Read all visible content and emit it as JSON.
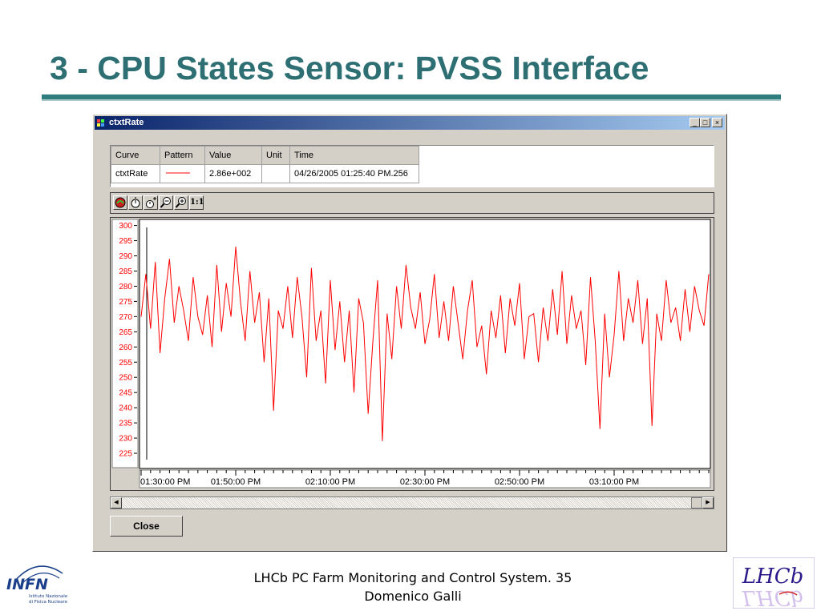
{
  "slide": {
    "title": "3 - CPU States Sensor: PVSS Interface",
    "footer_line1": "LHCb PC Farm Monitoring and Control System. 35",
    "footer_line2": "Domenico Galli"
  },
  "logos": {
    "infn_main": "INFN",
    "infn_sub1": "Istituto Nazionale",
    "infn_sub2": "di Fisica Nucleare",
    "lhcb": "LHCb"
  },
  "window": {
    "title": "ctxtRate",
    "minimize_glyph": "_",
    "maximize_glyph": "□",
    "close_glyph": "×",
    "scroll_left_glyph": "◀",
    "scroll_right_glyph": "▶",
    "close_button": "Close"
  },
  "curve_table": {
    "headers": [
      "Curve",
      "Pattern",
      "Value",
      "Unit",
      "Time"
    ],
    "row": {
      "curve": "ctxtRate",
      "value": "2.86e+002",
      "unit": "",
      "time": "04/26/2005 01:25:40 PM.256"
    }
  },
  "toolbar": {
    "zoom_reset_label": "1:1",
    "icons": [
      "curve-settings-icon",
      "stopwatch-icon",
      "stopwatch-plus-icon",
      "zoom-out-icon",
      "zoom-in-icon",
      "zoom-reset-icon"
    ]
  },
  "colors": {
    "curve": "#ff0000",
    "title": "#2e6f73",
    "y_tick_labels": "#ff0000"
  },
  "chart_data": {
    "type": "line",
    "series": [
      {
        "name": "ctxtRate",
        "x_minutes": [
          0,
          1,
          2,
          3,
          4,
          5,
          6,
          7,
          8,
          9,
          10,
          11,
          12,
          13,
          14,
          15,
          16,
          17,
          18,
          19,
          20,
          21,
          22,
          23,
          24,
          25,
          26,
          27,
          28,
          29,
          30,
          31,
          32,
          33,
          34,
          35,
          36,
          37,
          38,
          39,
          40,
          41,
          42,
          43,
          44,
          45,
          46,
          47,
          48,
          49,
          50,
          51,
          52,
          53,
          54,
          55,
          56,
          57,
          58,
          59,
          60,
          61,
          62,
          63,
          64,
          65,
          66,
          67,
          68,
          69,
          70,
          71,
          72,
          73,
          74,
          75,
          76,
          77,
          78,
          79,
          80,
          81,
          82,
          83,
          84,
          85,
          86,
          87,
          88,
          89,
          90,
          91,
          92,
          93,
          94,
          95,
          96,
          97,
          98,
          99,
          100,
          101,
          102,
          103,
          104,
          105,
          106,
          107,
          108,
          109,
          110,
          111,
          112,
          113,
          114,
          115,
          116,
          117,
          118,
          119,
          120
        ],
        "values": [
          270,
          284,
          266,
          288,
          258,
          276,
          289,
          268,
          280,
          272,
          262,
          283,
          270,
          264,
          277,
          260,
          287,
          265,
          281,
          270,
          293,
          275,
          262,
          285,
          268,
          278,
          255,
          276,
          239,
          272,
          266,
          280,
          263,
          283,
          270,
          250,
          286,
          262,
          272,
          248,
          282,
          259,
          275,
          255,
          272,
          245,
          276,
          268,
          238,
          262,
          282,
          229,
          271,
          256,
          280,
          266,
          287,
          273,
          266,
          278,
          261,
          269,
          284,
          263,
          275,
          262,
          280,
          268,
          256,
          272,
          282,
          260,
          267,
          251,
          272,
          263,
          277,
          258,
          276,
          267,
          281,
          256,
          270,
          271,
          255,
          273,
          262,
          279,
          264,
          285,
          261,
          277,
          266,
          272,
          254,
          283,
          262,
          233,
          271,
          250,
          264,
          285,
          262,
          276,
          268,
          282,
          261,
          276,
          234,
          271,
          262,
          282,
          268,
          273,
          262,
          279,
          265,
          280,
          272,
          267,
          284
        ]
      }
    ],
    "x_tick_labels": [
      "01:30:00 PM",
      "01:50:00 PM",
      "02:10:00 PM",
      "02:30:00 PM",
      "02:50:00 PM",
      "03:10:00 PM"
    ],
    "y_tick_labels": [
      "300",
      "295",
      "290",
      "285",
      "280",
      "275",
      "270",
      "265",
      "260",
      "255",
      "250",
      "245",
      "240",
      "235",
      "230",
      "225"
    ],
    "ylim": [
      220,
      302
    ],
    "grid": false,
    "legend": "table-above"
  }
}
